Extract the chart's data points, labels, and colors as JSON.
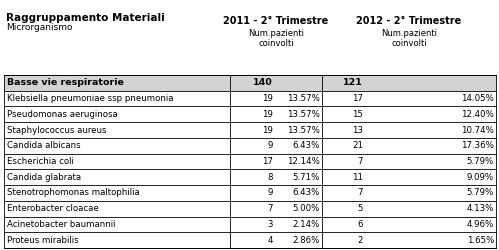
{
  "title_bold": "Raggruppamento Materiali",
  "title_sub": "Microrganismo",
  "col1_header_bold": "2011 - 2° Trimestre",
  "col1_header_sub": "Num.pazienti\ncoinvolti",
  "col2_header_bold": "2012 - 2° Trimestre",
  "col2_header_sub": "Num.pazienti\ncoinvolti",
  "header_row": [
    "Basse vie respiratorie",
    "140",
    "",
    "121",
    ""
  ],
  "rows": [
    [
      "Klebsiella pneumoniae ssp pneumonia",
      "19",
      "13.57%",
      "17",
      "14.05%"
    ],
    [
      "Pseudomonas aeruginosa",
      "19",
      "13.57%",
      "15",
      "12.40%"
    ],
    [
      "Staphylococcus aureus",
      "19",
      "13.57%",
      "13",
      "10.74%"
    ],
    [
      "Candida albicans",
      "9",
      "6.43%",
      "21",
      "17.36%"
    ],
    [
      "Escherichia coli",
      "17",
      "12.14%",
      "7",
      "5.79%"
    ],
    [
      "Candida glabrata",
      "8",
      "5.71%",
      "11",
      "9.09%"
    ],
    [
      "Stenotrophomonas maltophilia",
      "9",
      "6.43%",
      "7",
      "5.79%"
    ],
    [
      "Enterobacter cloacae",
      "7",
      "5.00%",
      "5",
      "4.13%"
    ],
    [
      "Acinetobacter baumannii",
      "3",
      "2.14%",
      "6",
      "4.96%"
    ],
    [
      "Proteus mirabilis",
      "4",
      "2.86%",
      "2",
      "1.65%"
    ]
  ],
  "bg_color_header_row": "#d3d3d3",
  "bg_color_white": "#ffffff",
  "border_color": "#000000",
  "text_color": "#000000"
}
